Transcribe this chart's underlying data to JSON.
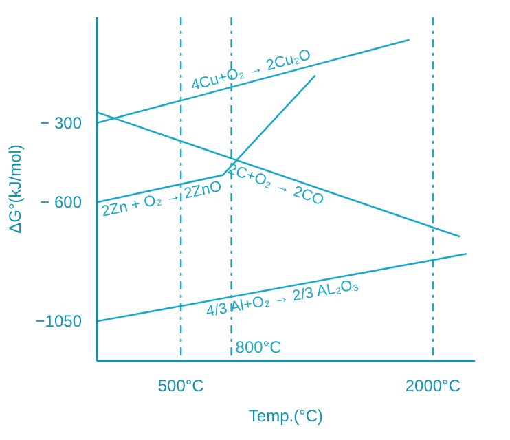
{
  "chart_data": {
    "type": "line",
    "xlabel": "Temp.(°C)",
    "ylabel": "ΔG°(kJ/mol)",
    "xlim": [
      0,
      2250
    ],
    "ylim": [
      -1200,
      100
    ],
    "xticks": [
      {
        "value": 500,
        "label": "500°C"
      },
      {
        "value": 2000,
        "label": "2000°C"
      }
    ],
    "yticks": [
      {
        "value": -300,
        "label": "− 300"
      },
      {
        "value": -600,
        "label": "− 600"
      },
      {
        "value": -1050,
        "label": "−1050"
      }
    ],
    "grid": false,
    "line_style": "solid",
    "series": [
      {
        "name": "4Cu+O₂ → 2Cu₂O",
        "color": "#1aa9c9",
        "x": [
          0,
          1860
        ],
        "values": [
          -300,
          15
        ]
      },
      {
        "name": "2C+O₂ → 2CO",
        "color": "#1aa9c9",
        "x": [
          0,
          2160
        ],
        "values": [
          -260,
          -730
        ]
      },
      {
        "name": "2Zn + O₂ → 2ZnO",
        "color": "#1aa9c9",
        "x": [
          0,
          750,
          1300
        ],
        "values": [
          -600,
          -497,
          -120
        ]
      },
      {
        "name": "4/3 Al+O₂ → 2/3 AL₂O₃",
        "color": "#1aa9c9",
        "x": [
          0,
          2200
        ],
        "values": [
          -1050,
          -795
        ]
      }
    ],
    "ref_lines": [
      {
        "axis": "x",
        "value": 500,
        "label": null,
        "color": "#1aa9c9",
        "line_style": "dashed"
      },
      {
        "axis": "x",
        "value": 800,
        "label": "800°C",
        "color": "#1aa9c9",
        "line_style": "dashed"
      },
      {
        "axis": "x",
        "value": 2000,
        "label": null,
        "color": "#1aa9c9",
        "line_style": "dashed"
      }
    ]
  }
}
